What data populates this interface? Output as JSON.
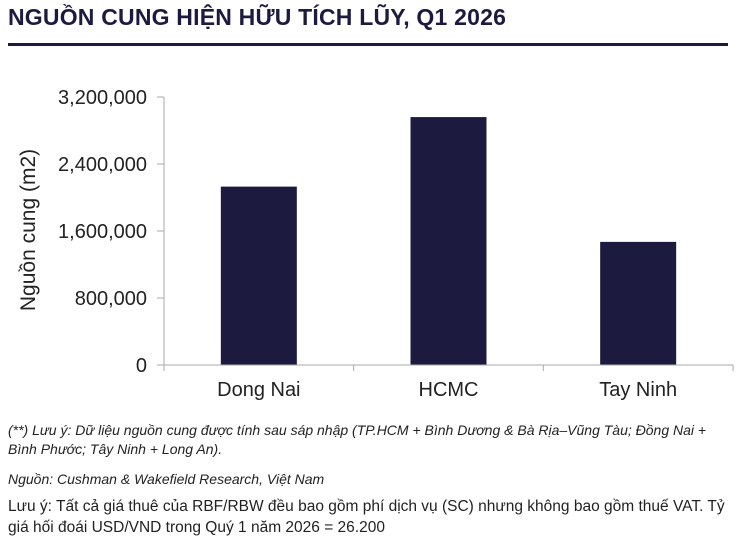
{
  "title": "NGUỒN CUNG HIỆN HỮU TÍCH LŨY, Q1 2026",
  "colors": {
    "bar": "#1c1a3e",
    "title": "#1c1a3e",
    "axis": "#aaaaaa"
  },
  "chart_data": {
    "type": "bar",
    "categories": [
      "Dong Nai",
      "HCMC",
      "Tay Ninh"
    ],
    "values": [
      2130000,
      2960000,
      1470000
    ],
    "ylabel": "Nguồn cung (m2)",
    "xlabel": "",
    "ylim": [
      0,
      3200000
    ],
    "yticks": [
      0,
      800000,
      1600000,
      2400000,
      3200000
    ],
    "ytick_labels": [
      "0",
      "800,000",
      "1,600,000",
      "2,400,000",
      "3,200,000"
    ],
    "grid": false,
    "legend": "none"
  },
  "notes": {
    "footnote": "(**) Lưu ý: Dữ liệu nguồn cung được tính sau sáp nhập (TP.HCM + Bình Dương & Bà Rịa–Vũng Tàu; Đồng Nai + Bình Phước; Tây Ninh + Long An).",
    "source": "Nguồn: Cushman & Wakefield Research, Việt Nam",
    "disclaimer": "Lưu ý: Tất cả giá thuê của RBF/RBW đều bao gồm phí dịch vụ (SC) nhưng không bao gồm thuế VAT. Tỷ giá hối đoái USD/VND trong Quý 1 năm 2026 = 26.200"
  }
}
